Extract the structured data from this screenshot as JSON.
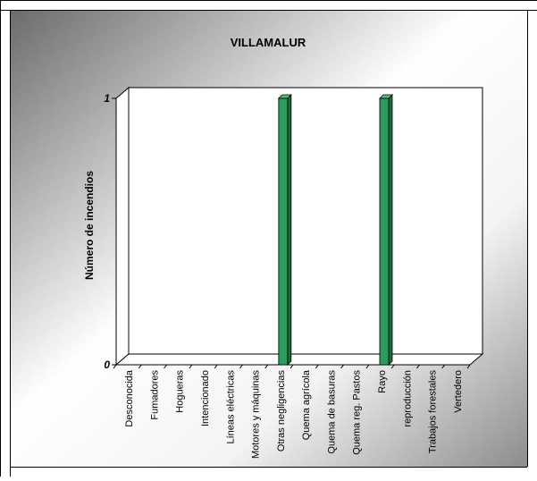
{
  "chart_data": {
    "type": "bar",
    "title": "VILLAMALUR",
    "ylabel": "Número de incendios",
    "xlabel": "",
    "ylim": [
      0,
      1
    ],
    "yticks": [
      0,
      1
    ],
    "categories": [
      "Desconocida",
      "Fumadores",
      "Hogueras",
      "Intencionado",
      "Líneas eléctricas",
      "Motores y máquinas",
      "Otras negligencias",
      "Quema agrícola",
      "Quema de basuras",
      "Quema reg. Pastos",
      "Rayo",
      "reproducción",
      "Trabajos forestales",
      "Vertedero"
    ],
    "values": [
      0,
      0,
      0,
      0,
      0,
      0,
      1,
      0,
      0,
      0,
      1,
      0,
      0,
      0
    ],
    "bar_color": "#2e9a5e",
    "grid": false,
    "style": "3d"
  }
}
